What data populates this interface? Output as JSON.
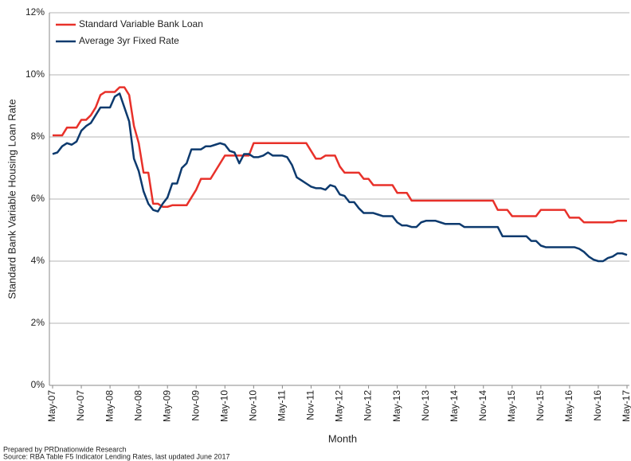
{
  "chart_data": {
    "type": "line",
    "x_label": "Month",
    "y_label": "Standard Bank Variable Housing  Loan Rate",
    "footnotes": [
      "Prepared by PRDnationwide Research",
      "Source: RBA Table F5 Indicator Lending Rates, last updated June 2017"
    ],
    "categories": [
      "May-07",
      null,
      null,
      null,
      null,
      null,
      "Nov-07",
      null,
      null,
      null,
      null,
      null,
      "May-08",
      null,
      null,
      null,
      null,
      null,
      "Nov-08",
      null,
      null,
      null,
      null,
      null,
      "May-09",
      null,
      null,
      null,
      null,
      null,
      "Nov-09",
      null,
      null,
      null,
      null,
      null,
      "May-10",
      null,
      null,
      null,
      null,
      null,
      "Nov-10",
      null,
      null,
      null,
      null,
      null,
      "May-11",
      null,
      null,
      null,
      null,
      null,
      "Nov-11",
      null,
      null,
      null,
      null,
      null,
      "May-12",
      null,
      null,
      null,
      null,
      null,
      "Nov-12",
      null,
      null,
      null,
      null,
      null,
      "May-13",
      null,
      null,
      null,
      null,
      null,
      "Nov-13",
      null,
      null,
      null,
      null,
      null,
      "May-14",
      null,
      null,
      null,
      null,
      null,
      "Nov-14",
      null,
      null,
      null,
      null,
      null,
      "May-15",
      null,
      null,
      null,
      null,
      null,
      "Nov-15",
      null,
      null,
      null,
      null,
      null,
      "May-16",
      null,
      null,
      null,
      null,
      null,
      "Nov-16",
      null,
      null,
      null,
      null,
      null,
      "May-17"
    ],
    "series": [
      {
        "name": "Standard Variable Bank Loan",
        "color": "#e8312a",
        "values": [
          8.05,
          8.05,
          8.05,
          8.3,
          8.3,
          8.3,
          8.55,
          8.55,
          8.7,
          8.95,
          9.35,
          9.45,
          9.45,
          9.45,
          9.6,
          9.6,
          9.35,
          8.35,
          7.8,
          6.85,
          6.85,
          5.85,
          5.85,
          5.75,
          5.75,
          5.8,
          5.8,
          5.8,
          5.8,
          6.05,
          6.3,
          6.65,
          6.65,
          6.65,
          6.9,
          7.15,
          7.4,
          7.4,
          7.4,
          7.4,
          7.4,
          7.4,
          7.8,
          7.8,
          7.8,
          7.8,
          7.8,
          7.8,
          7.8,
          7.8,
          7.8,
          7.8,
          7.8,
          7.8,
          7.55,
          7.3,
          7.3,
          7.4,
          7.4,
          7.4,
          7.05,
          6.85,
          6.85,
          6.85,
          6.85,
          6.65,
          6.65,
          6.45,
          6.45,
          6.45,
          6.45,
          6.45,
          6.2,
          6.2,
          6.2,
          5.95,
          5.95,
          5.95,
          5.95,
          5.95,
          5.95,
          5.95,
          5.95,
          5.95,
          5.95,
          5.95,
          5.95,
          5.95,
          5.95,
          5.95,
          5.95,
          5.95,
          5.95,
          5.65,
          5.65,
          5.65,
          5.45,
          5.45,
          5.45,
          5.45,
          5.45,
          5.45,
          5.65,
          5.65,
          5.65,
          5.65,
          5.65,
          5.65,
          5.4,
          5.4,
          5.4,
          5.25,
          5.25,
          5.25,
          5.25,
          5.25,
          5.25,
          5.25,
          5.3,
          5.3,
          5.3
        ]
      },
      {
        "name": "Average 3yr Fixed Rate",
        "color": "#0d3a6e",
        "values": [
          7.45,
          7.5,
          7.7,
          7.8,
          7.75,
          7.85,
          8.2,
          8.35,
          8.45,
          8.7,
          8.95,
          8.95,
          8.95,
          9.3,
          9.4,
          8.95,
          8.5,
          7.3,
          6.9,
          6.25,
          5.85,
          5.65,
          5.6,
          5.85,
          6.05,
          6.5,
          6.5,
          7.0,
          7.15,
          7.6,
          7.6,
          7.6,
          7.7,
          7.7,
          7.75,
          7.8,
          7.75,
          7.55,
          7.5,
          7.15,
          7.45,
          7.45,
          7.35,
          7.35,
          7.4,
          7.5,
          7.4,
          7.4,
          7.4,
          7.35,
          7.1,
          6.7,
          6.6,
          6.5,
          6.4,
          6.35,
          6.35,
          6.3,
          6.45,
          6.4,
          6.15,
          6.1,
          5.9,
          5.9,
          5.7,
          5.55,
          5.55,
          5.55,
          5.5,
          5.45,
          5.45,
          5.45,
          5.25,
          5.15,
          5.15,
          5.1,
          5.1,
          5.25,
          5.3,
          5.3,
          5.3,
          5.25,
          5.2,
          5.2,
          5.2,
          5.2,
          5.1,
          5.1,
          5.1,
          5.1,
          5.1,
          5.1,
          5.1,
          5.1,
          4.8,
          4.8,
          4.8,
          4.8,
          4.8,
          4.8,
          4.65,
          4.65,
          4.5,
          4.45,
          4.45,
          4.45,
          4.45,
          4.45,
          4.45,
          4.45,
          4.4,
          4.3,
          4.15,
          4.05,
          4.0,
          4.0,
          4.1,
          4.15,
          4.25,
          4.25,
          4.2
        ]
      }
    ],
    "ylim": [
      0,
      12
    ],
    "yticks": [
      {
        "value": 0,
        "label": "0%"
      },
      {
        "value": 2,
        "label": "2%"
      },
      {
        "value": 4,
        "label": "4%"
      },
      {
        "value": 6,
        "label": "6%"
      },
      {
        "value": 8,
        "label": "8%"
      },
      {
        "value": 10,
        "label": "10%"
      },
      {
        "value": 12,
        "label": "12%"
      }
    ],
    "grid": true,
    "legend": "top-left"
  }
}
